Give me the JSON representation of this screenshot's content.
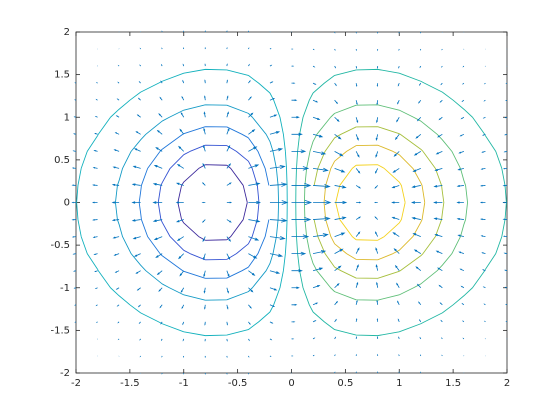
{
  "chart_data": {
    "type": "contour",
    "x": [
      -2,
      -1.8,
      -1.6,
      -1.4,
      -1.2,
      -1,
      -0.8,
      -0.6,
      -0.4,
      -0.2,
      0,
      0.2,
      0.4,
      0.6,
      0.8,
      1,
      1.2,
      1.4,
      1.6,
      1.8,
      2
    ],
    "y": [
      -2,
      -1.8,
      -1.6,
      -1.4,
      -1.2,
      -1,
      -0.8,
      -0.6,
      -0.4,
      -0.2,
      0,
      0.2,
      0.4,
      0.6,
      0.8,
      1,
      1.2,
      1.4,
      1.6,
      1.8,
      2
    ],
    "z": [
      [
        -0.001,
        -0.001,
        -0.002,
        -0.004,
        -0.005,
        -0.007,
        -0.008,
        -0.008,
        -0.006,
        -0.004,
        0,
        0.004,
        0.006,
        0.008,
        0.008,
        0.007,
        0.005,
        0.004,
        0.002,
        0.001,
        0.001
      ],
      [
        -0.001,
        -0.003,
        -0.005,
        -0.008,
        -0.011,
        -0.014,
        -0.017,
        -0.016,
        -0.013,
        -0.008,
        0,
        0.008,
        0.013,
        0.016,
        0.017,
        0.014,
        0.011,
        0.008,
        0.005,
        0.003,
        0.001
      ],
      [
        -0.003,
        -0.005,
        -0.01,
        -0.015,
        -0.022,
        -0.028,
        -0.033,
        -0.032,
        -0.026,
        -0.015,
        0,
        0.015,
        0.026,
        0.032,
        0.033,
        0.028,
        0.022,
        0.015,
        0.01,
        0.005,
        0.003
      ],
      [
        -0.005,
        -0.01,
        -0.017,
        -0.028,
        -0.04,
        -0.052,
        -0.059,
        -0.059,
        -0.048,
        -0.027,
        0,
        0.027,
        0.048,
        0.059,
        0.059,
        0.052,
        0.04,
        0.028,
        0.017,
        0.01,
        0.005
      ],
      [
        -0.009,
        -0.017,
        -0.029,
        -0.047,
        -0.067,
        -0.087,
        -0.1,
        -0.099,
        -0.081,
        -0.046,
        0,
        0.046,
        0.081,
        0.099,
        0.1,
        0.087,
        0.067,
        0.047,
        0.029,
        0.017,
        0.009
      ],
      [
        -0.013,
        -0.026,
        -0.046,
        -0.073,
        -0.105,
        -0.135,
        -0.155,
        -0.154,
        -0.125,
        -0.071,
        0,
        0.071,
        0.125,
        0.154,
        0.155,
        0.135,
        0.105,
        0.073,
        0.046,
        0.026,
        0.013
      ],
      [
        -0.019,
        -0.037,
        -0.065,
        -0.104,
        -0.15,
        -0.194,
        -0.222,
        -0.221,
        -0.18,
        -0.101,
        0,
        0.101,
        0.18,
        0.221,
        0.222,
        0.194,
        0.15,
        0.104,
        0.065,
        0.037,
        0.019
      ],
      [
        -0.026,
        -0.049,
        -0.086,
        -0.138,
        -0.198,
        -0.257,
        -0.294,
        -0.292,
        -0.238,
        -0.134,
        0,
        0.134,
        0.238,
        0.292,
        0.294,
        0.257,
        0.198,
        0.138,
        0.086,
        0.049,
        0.026
      ],
      [
        -0.031,
        -0.06,
        -0.105,
        -0.168,
        -0.242,
        -0.313,
        -0.359,
        -0.357,
        -0.29,
        -0.164,
        0,
        0.164,
        0.29,
        0.357,
        0.359,
        0.313,
        0.242,
        0.168,
        0.105,
        0.06,
        0.031
      ],
      [
        -0.035,
        -0.068,
        -0.119,
        -0.189,
        -0.273,
        -0.353,
        -0.405,
        -0.402,
        -0.327,
        -0.185,
        0,
        0.185,
        0.327,
        0.402,
        0.405,
        0.353,
        0.273,
        0.189,
        0.119,
        0.068,
        0.035
      ],
      [
        -0.037,
        -0.071,
        -0.124,
        -0.197,
        -0.284,
        -0.368,
        -0.422,
        -0.419,
        -0.341,
        -0.192,
        0,
        0.192,
        0.341,
        0.419,
        0.422,
        0.368,
        0.284,
        0.197,
        0.124,
        0.071,
        0.037
      ],
      [
        -0.035,
        -0.068,
        -0.119,
        -0.189,
        -0.273,
        -0.353,
        -0.405,
        -0.402,
        -0.327,
        -0.185,
        0,
        0.185,
        0.327,
        0.402,
        0.405,
        0.353,
        0.273,
        0.189,
        0.119,
        0.068,
        0.035
      ],
      [
        -0.031,
        -0.06,
        -0.105,
        -0.168,
        -0.242,
        -0.313,
        -0.359,
        -0.357,
        -0.29,
        -0.164,
        0,
        0.164,
        0.29,
        0.357,
        0.359,
        0.313,
        0.242,
        0.168,
        0.105,
        0.06,
        0.031
      ],
      [
        -0.026,
        -0.049,
        -0.086,
        -0.138,
        -0.198,
        -0.257,
        -0.294,
        -0.292,
        -0.238,
        -0.134,
        0,
        0.134,
        0.238,
        0.292,
        0.294,
        0.257,
        0.198,
        0.138,
        0.086,
        0.049,
        0.026
      ],
      [
        -0.019,
        -0.037,
        -0.065,
        -0.104,
        -0.15,
        -0.194,
        -0.222,
        -0.221,
        -0.18,
        -0.101,
        0,
        0.101,
        0.18,
        0.221,
        0.222,
        0.194,
        0.15,
        0.104,
        0.065,
        0.037,
        0.019
      ],
      [
        -0.013,
        -0.026,
        -0.046,
        -0.073,
        -0.105,
        -0.135,
        -0.155,
        -0.154,
        -0.125,
        -0.071,
        0,
        0.071,
        0.125,
        0.154,
        0.155,
        0.135,
        0.105,
        0.073,
        0.046,
        0.026,
        0.013
      ],
      [
        -0.009,
        -0.017,
        -0.029,
        -0.047,
        -0.067,
        -0.087,
        -0.1,
        -0.099,
        -0.081,
        -0.046,
        0,
        0.046,
        0.081,
        0.099,
        0.1,
        0.087,
        0.067,
        0.047,
        0.029,
        0.017,
        0.009
      ],
      [
        -0.005,
        -0.01,
        -0.017,
        -0.028,
        -0.04,
        -0.052,
        -0.059,
        -0.059,
        -0.048,
        -0.027,
        0,
        0.027,
        0.048,
        0.059,
        0.059,
        0.052,
        0.04,
        0.028,
        0.017,
        0.01,
        0.005
      ],
      [
        -0.003,
        -0.005,
        -0.01,
        -0.015,
        -0.022,
        -0.028,
        -0.033,
        -0.032,
        -0.026,
        -0.015,
        0,
        0.015,
        0.026,
        0.032,
        0.033,
        0.028,
        0.022,
        0.015,
        0.01,
        0.005,
        0.003
      ],
      [
        -0.001,
        -0.003,
        -0.005,
        -0.008,
        -0.011,
        -0.014,
        -0.017,
        -0.016,
        -0.013,
        -0.008,
        0,
        0.008,
        0.013,
        0.016,
        0.017,
        0.014,
        0.011,
        0.008,
        0.005,
        0.003,
        0.001
      ],
      [
        -0.001,
        -0.001,
        -0.002,
        -0.004,
        -0.005,
        -0.007,
        -0.008,
        -0.008,
        -0.006,
        -0.004,
        0,
        0.004,
        0.006,
        0.008,
        0.008,
        0.007,
        0.005,
        0.004,
        0.002,
        0.001,
        0.001
      ]
    ],
    "levels": [
      -0.345,
      -0.268,
      -0.192,
      -0.115,
      -0.038,
      0.038,
      0.115,
      0.192,
      0.268,
      0.345
    ],
    "level_colors": [
      "#3d2a9c",
      "#3452d2",
      "#2077da",
      "#159bc6",
      "#13b1bd",
      "#22b7a4",
      "#5fbf78",
      "#a6bf3c",
      "#dcb92b",
      "#f4d21f"
    ],
    "quiver": true,
    "quiver_color": "#0072bd",
    "xlim": [
      -2,
      2
    ],
    "ylim": [
      -2,
      2
    ],
    "xticks": [
      -2,
      -1.5,
      -1,
      -0.5,
      0,
      0.5,
      1,
      1.5,
      2
    ],
    "yticks": [
      -2,
      -1.5,
      -1,
      -0.5,
      0,
      0.5,
      1,
      1.5,
      2
    ]
  }
}
